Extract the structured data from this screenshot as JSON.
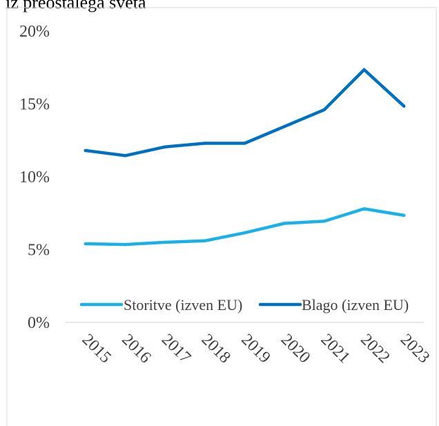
{
  "chart_data": {
    "type": "line",
    "title": "iz preostalega sveta",
    "xlabel": "",
    "ylabel": "",
    "categories": [
      "2015",
      "2016",
      "2017",
      "2018",
      "2019",
      "2020",
      "2021",
      "2022",
      "2023"
    ],
    "ylim": [
      0,
      20
    ],
    "yticks": [
      0,
      5,
      10,
      15,
      20
    ],
    "ytick_labels": [
      "0%",
      "5%",
      "10%",
      "15%",
      "20%"
    ],
    "grid": false,
    "legend_position": "bottom",
    "series": [
      {
        "name": "Storitve (izven EU)",
        "color": "#1ab0e8",
        "values": [
          5.4,
          5.35,
          5.5,
          5.6,
          6.15,
          6.8,
          6.95,
          7.8,
          7.35
        ]
      },
      {
        "name": "Blago (izven EU)",
        "color": "#0070c0",
        "values": [
          11.8,
          11.45,
          12.05,
          12.3,
          12.3,
          13.45,
          14.6,
          17.35,
          14.85
        ]
      }
    ]
  }
}
